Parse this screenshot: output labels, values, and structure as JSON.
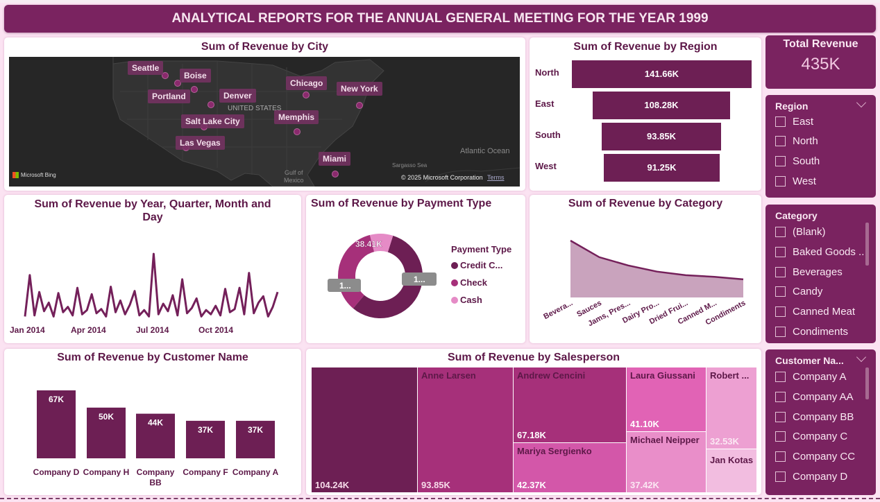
{
  "banner": {
    "title": "ANALYTICAL REPORTS FOR THE ANNUAL GENERAL MEETING FOR THE YEAR 1999"
  },
  "map": {
    "title": "Sum of Revenue by City",
    "cities": [
      "Seattle",
      "Boise",
      "Portland",
      "Denver",
      "Chicago",
      "New York",
      "Salt Lake City",
      "Memphis",
      "Las Vegas",
      "Miami"
    ],
    "labels": {
      "country": "UNITED STATES",
      "ocean": "Atlantic Ocean",
      "sea": "Sargasso Sea",
      "gulf1": "Gulf of",
      "gulf2": "Mexico",
      "bing": "Microsoft Bing",
      "copyright": "© 2025 Microsoft Corporation",
      "terms": "Terms"
    }
  },
  "region_chart": {
    "title": "Sum of Revenue by Region",
    "rows": [
      {
        "label": "North",
        "value": "141.66K"
      },
      {
        "label": "East",
        "value": "108.28K"
      },
      {
        "label": "South",
        "value": "93.85K"
      },
      {
        "label": "West",
        "value": "91.25K"
      }
    ]
  },
  "kpi": {
    "label": "Total Revenue",
    "value": "435K"
  },
  "region_slicer": {
    "title": "Region",
    "items": [
      "East",
      "North",
      "South",
      "West"
    ]
  },
  "category_slicer": {
    "title": "Category",
    "items": [
      "(Blank)",
      "Baked Goods ..",
      "Beverages",
      "Candy",
      "Canned Meat",
      "Condiments"
    ]
  },
  "customer_slicer": {
    "title": "Customer Na...",
    "items": [
      "Company A",
      "Company AA",
      "Company BB",
      "Company C",
      "Company CC",
      "Company D"
    ]
  },
  "time_chart": {
    "title_line1": "Sum of Revenue by Year, Quarter, Month and",
    "title_line2": "Day",
    "ticks": [
      "Jan 2014",
      "Apr 2014",
      "Jul 2014",
      "Oct 2014"
    ]
  },
  "payment_chart": {
    "title": "Sum of Revenue by Payment Type",
    "legend_title": "Payment Type",
    "legend": [
      "Credit C...",
      "Check",
      "Cash"
    ],
    "label_cash": "38.41K",
    "label_check": "1...",
    "label_credit": "1..."
  },
  "category_chart": {
    "title": "Sum of Revenue by Category",
    "ticks": [
      "Bevera...",
      "Sauces",
      "Jams, Pres...",
      "Dairy Pro...",
      "Dried Frui...",
      "Canned M...",
      "Condiments"
    ]
  },
  "customer_chart": {
    "title": "Sum of Revenue by Customer Name",
    "value_labels": [
      "67K",
      "50K",
      "44K",
      "37K",
      "37K"
    ],
    "cat1": "Company D",
    "cat2": "Company H",
    "cat3a": "Company",
    "cat3b": "BB",
    "cat4": "Company F",
    "cat5": "Company A"
  },
  "salesperson_chart": {
    "title": "Sum of Revenue by Salesperson",
    "cells": [
      {
        "name": "",
        "value": "104.24K"
      },
      {
        "name": "Anne Larsen",
        "value": "93.85K"
      },
      {
        "name": "Andrew Cencini",
        "value": "67.18K"
      },
      {
        "name": "Mariya Sergienko",
        "value": "42.37K"
      },
      {
        "name": "Laura Giussani",
        "value": "41.10K"
      },
      {
        "name": "Michael Neipper",
        "value": "37.42K"
      },
      {
        "name": "Robert ...",
        "value": "32.53K"
      },
      {
        "name": "Jan Kotas",
        "value": ""
      }
    ]
  },
  "colors": {
    "primary": "#7a2360",
    "dark": "#6d1f54",
    "page_bg": "#fbe3f2",
    "check": "#a6307a",
    "cash": "#e58bc6"
  },
  "chart_data": [
    {
      "type": "bar",
      "title": "Sum of Revenue by Region",
      "categories": [
        "North",
        "East",
        "South",
        "West"
      ],
      "values": [
        141660,
        108280,
        93850,
        91250
      ]
    },
    {
      "type": "pie",
      "title": "Sum of Revenue by Payment Type",
      "categories": [
        "Credit C...",
        "Check",
        "Cash"
      ],
      "values": [
        245000,
        152000,
        38410
      ]
    },
    {
      "type": "area",
      "title": "Sum of Revenue by Category",
      "categories": [
        "Bevera...",
        "Sauces",
        "Jams, Pres...",
        "Dairy Pro...",
        "Dried Frui...",
        "Canned M...",
        "Condiments"
      ],
      "values": [
        110000,
        78000,
        62000,
        50000,
        43000,
        40000,
        35000
      ]
    },
    {
      "type": "bar",
      "title": "Sum of Revenue by Customer Name",
      "categories": [
        "Company D",
        "Company H",
        "Company BB",
        "Company F",
        "Company A"
      ],
      "values": [
        67000,
        50000,
        44000,
        37000,
        37000
      ]
    },
    {
      "type": "line",
      "title": "Sum of Revenue by Year, Quarter, Month and Day",
      "x_ticks": [
        "Jan 2014",
        "Apr 2014",
        "Jul 2014",
        "Oct 2014"
      ],
      "values": [
        300,
        4200,
        400,
        2600,
        800,
        1600,
        300,
        2500,
        700,
        1200,
        400,
        3000,
        500,
        900,
        2400,
        600,
        1000,
        300,
        3100,
        700,
        1800,
        500,
        1400,
        2700,
        400,
        900,
        300,
        6200,
        500,
        1500,
        800,
        2300,
        400,
        3800,
        600,
        1100,
        2000,
        300,
        900,
        500,
        1300,
        400,
        2900,
        700,
        1000,
        3000,
        500,
        4400,
        600,
        1600,
        2200,
        300,
        1200,
        2600
      ]
    },
    {
      "type": "table",
      "title": "Sum of Revenue by Salesperson",
      "categories": [
        "",
        "Anne Larsen",
        "Andrew Cencini",
        "Mariya Sergienko",
        "Laura Giussani",
        "Michael Neipper",
        "Robert ...",
        "Jan Kotas"
      ],
      "values": [
        104240,
        93850,
        67180,
        42370,
        41100,
        37420,
        32530,
        22000
      ]
    }
  ]
}
